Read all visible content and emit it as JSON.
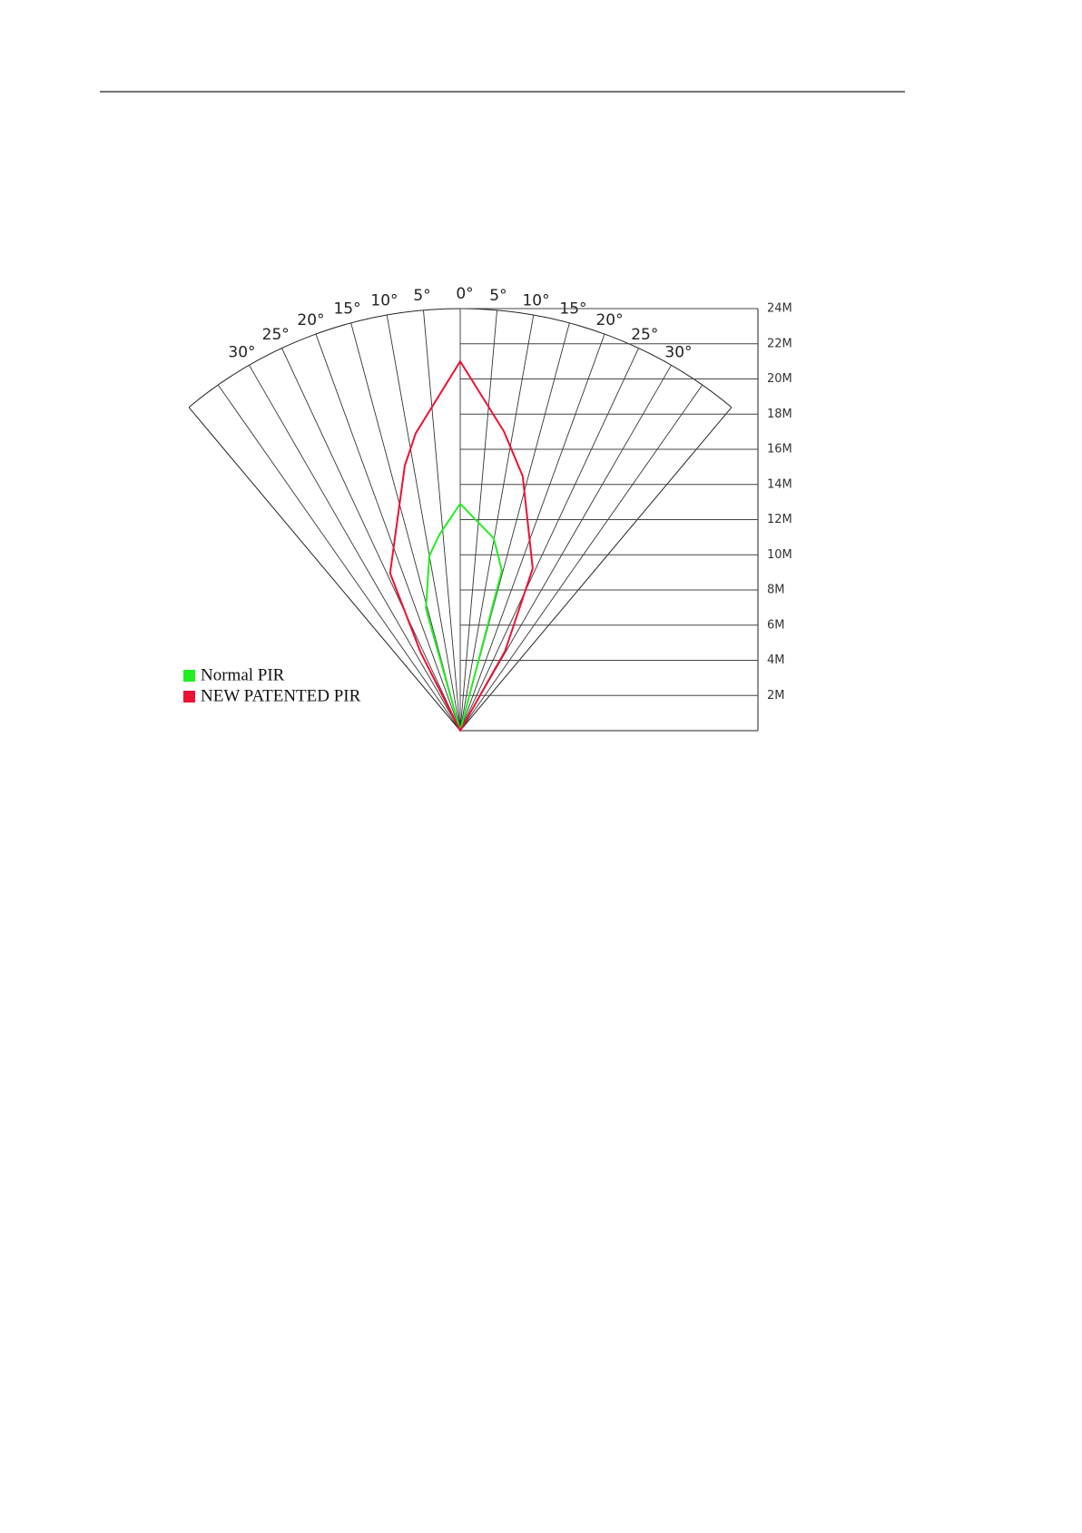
{
  "chart_data": {
    "type": "polar",
    "xlim": [
      -40,
      40
    ],
    "ylim": [
      0,
      24
    ],
    "xticks": [
      {
        "value": -30,
        "label": "30°"
      },
      {
        "value": -25,
        "label": "25°"
      },
      {
        "value": -20,
        "label": "20°"
      },
      {
        "value": -15,
        "label": "15°"
      },
      {
        "value": -10,
        "label": "10°"
      },
      {
        "value": -5,
        "label": "5°"
      },
      {
        "value": 0,
        "label": "0°"
      },
      {
        "value": 5,
        "label": "5°"
      },
      {
        "value": 10,
        "label": "10°"
      },
      {
        "value": 15,
        "label": "15°"
      },
      {
        "value": 20,
        "label": "20°"
      },
      {
        "value": 25,
        "label": "25°"
      },
      {
        "value": 30,
        "label": "30°"
      }
    ],
    "yticks": [
      {
        "value": 2,
        "label": "2M"
      },
      {
        "value": 4,
        "label": "4M"
      },
      {
        "value": 6,
        "label": "6M"
      },
      {
        "value": 8,
        "label": "8M"
      },
      {
        "value": 10,
        "label": "10M"
      },
      {
        "value": 12,
        "label": "12M"
      },
      {
        "value": 14,
        "label": "14M"
      },
      {
        "value": 16,
        "label": "16M"
      },
      {
        "value": 18,
        "label": "18M"
      },
      {
        "value": 20,
        "label": "20M"
      },
      {
        "value": 22,
        "label": "22M"
      },
      {
        "value": 24,
        "label": "24M"
      }
    ],
    "legend": "lower left",
    "series": [
      {
        "name": "Normal PIR",
        "color": "#22ee22",
        "angles": [
          -15.7,
          -10.0,
          -6.1,
          0,
          9.9,
          14.6
        ],
        "values": [
          7.2,
          10.1,
          11.2,
          12.9,
          11.1,
          9.4
        ]
      },
      {
        "name": "NEW PATENTED PIR",
        "color": "#ee1133",
        "angles": [
          -26.8,
          -24.0,
          -11.8,
          -8.5,
          0,
          8.3,
          13.8,
          24.1,
          29.4
        ],
        "values": [
          5.0,
          9.8,
          15.4,
          17.1,
          21.0,
          17.2,
          14.9,
          10.1,
          5.2
        ]
      }
    ]
  }
}
